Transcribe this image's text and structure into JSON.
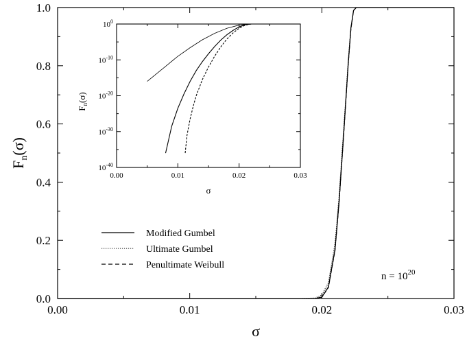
{
  "chart_data": [
    {
      "type": "line",
      "panel": "main",
      "xlabel": "σ",
      "ylabel_main": "F",
      "ylabel_sub": "n",
      "ylabel_arg": "(σ)",
      "xlim": [
        0.0,
        0.03
      ],
      "ylim": [
        0.0,
        1.0
      ],
      "xticks": [
        "0.00",
        "0.01",
        "0.02",
        "0.03"
      ],
      "yticks": [
        "0.0",
        "0.2",
        "0.4",
        "0.6",
        "0.8",
        "1.0"
      ],
      "annotation_prefix": "n = 10",
      "annotation_exp": "20",
      "legend_position": "center-left",
      "series": [
        {
          "name": "Modified Gumbel",
          "style": "solid",
          "x": [
            0.0,
            0.0185,
            0.0195,
            0.02,
            0.0205,
            0.021,
            0.0213,
            0.0216,
            0.0218,
            0.022,
            0.0222,
            0.0224,
            0.0226,
            0.0228,
            0.023,
            0.03
          ],
          "y": [
            0.0,
            0.0,
            0.0,
            0.005,
            0.04,
            0.17,
            0.33,
            0.53,
            0.67,
            0.81,
            0.93,
            0.99,
            1.0,
            1.0,
            1.0,
            1.0
          ]
        },
        {
          "name": "Ultimate Gumbel",
          "style": "dotted",
          "x": [
            0.0,
            0.0185,
            0.0195,
            0.02,
            0.0205,
            0.021,
            0.0213,
            0.0216,
            0.0218,
            0.022,
            0.0222,
            0.0224,
            0.0226,
            0.0228,
            0.023,
            0.03
          ],
          "y": [
            0.0,
            0.0,
            0.002,
            0.012,
            0.055,
            0.19,
            0.35,
            0.55,
            0.68,
            0.82,
            0.93,
            0.99,
            1.0,
            1.0,
            1.0,
            1.0
          ]
        },
        {
          "name": "Penultimate Weibull",
          "style": "dashed",
          "x": [
            0.0,
            0.0185,
            0.0195,
            0.02,
            0.0205,
            0.021,
            0.0213,
            0.0216,
            0.0218,
            0.022,
            0.0222,
            0.0224,
            0.0226,
            0.0228,
            0.023,
            0.03
          ],
          "y": [
            0.0,
            0.0,
            0.0,
            0.004,
            0.038,
            0.165,
            0.325,
            0.525,
            0.665,
            0.805,
            0.925,
            0.99,
            1.0,
            1.0,
            1.0,
            1.0
          ]
        }
      ]
    },
    {
      "type": "line",
      "panel": "inset",
      "xlabel": "σ",
      "ylabel_main": "F",
      "ylabel_sub": "n",
      "ylabel_arg": "(σ)",
      "xlim": [
        0.0,
        0.03
      ],
      "ylim": [
        1e-40,
        1
      ],
      "yscale": "log",
      "xticks": [
        "0.00",
        "0.01",
        "0.02",
        "0.03"
      ],
      "yticks": [
        {
          "base": "10",
          "exp": "0",
          "log": 0
        },
        {
          "base": "10",
          "exp": "-10",
          "log": -10
        },
        {
          "base": "10",
          "exp": "-20",
          "log": -20
        },
        {
          "base": "10",
          "exp": "-30",
          "log": -30
        },
        {
          "base": "10",
          "exp": "-40",
          "log": -40
        }
      ],
      "series": [
        {
          "name": "Modified Gumbel",
          "style": "solid",
          "x": [
            0.008,
            0.009,
            0.01,
            0.011,
            0.012,
            0.013,
            0.014,
            0.015,
            0.016,
            0.017,
            0.018,
            0.019,
            0.02,
            0.021,
            0.022,
            0.03
          ],
          "log10_y": [
            -36,
            -28.5,
            -23.5,
            -19.5,
            -16.0,
            -13.0,
            -10.5,
            -8.3,
            -6.3,
            -4.5,
            -3.0,
            -1.8,
            -0.8,
            -0.2,
            0,
            0
          ]
        },
        {
          "name": "Ultimate Gumbel",
          "style": "solid-thin",
          "x": [
            0.005,
            0.008,
            0.01,
            0.012,
            0.014,
            0.016,
            0.018,
            0.02,
            0.021,
            0.022,
            0.03
          ],
          "log10_y": [
            -16.0,
            -11.8,
            -9.0,
            -6.6,
            -4.4,
            -2.6,
            -1.2,
            -0.3,
            -0.1,
            0,
            0
          ]
        },
        {
          "name": "Penultimate Weibull",
          "style": "dashed",
          "x": [
            0.0112,
            0.0115,
            0.012,
            0.0125,
            0.013,
            0.014,
            0.015,
            0.016,
            0.017,
            0.018,
            0.019,
            0.02,
            0.021,
            0.022,
            0.03
          ],
          "log10_y": [
            -36,
            -31.0,
            -26.5,
            -23.0,
            -20.0,
            -15.5,
            -12.0,
            -9.0,
            -6.4,
            -4.2,
            -2.5,
            -1.2,
            -0.3,
            0,
            0
          ]
        }
      ]
    }
  ]
}
